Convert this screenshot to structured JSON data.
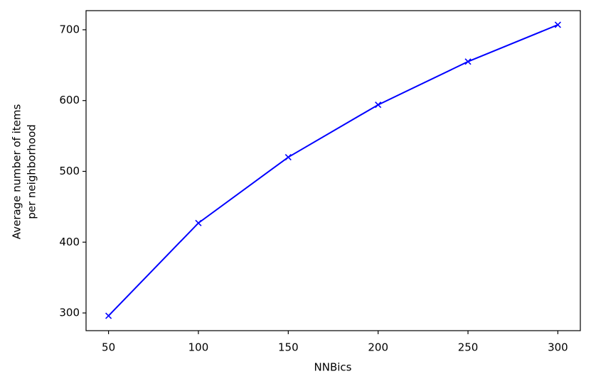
{
  "chart_data": {
    "type": "line",
    "x": [
      50,
      100,
      150,
      200,
      250,
      300
    ],
    "values": [
      296,
      427,
      520,
      594,
      655,
      707
    ],
    "color": "#0000ff",
    "marker": "x",
    "xlabel": "NNBics",
    "ylabel": [
      "Average number of items",
      "per neighborhood"
    ],
    "xlim": [
      37.5,
      312.5
    ],
    "xticks": [
      50,
      100,
      150,
      200,
      250,
      300
    ],
    "ylim": [
      275,
      727
    ],
    "yticks": [
      300,
      400,
      500,
      600,
      700
    ],
    "grid": false
  }
}
